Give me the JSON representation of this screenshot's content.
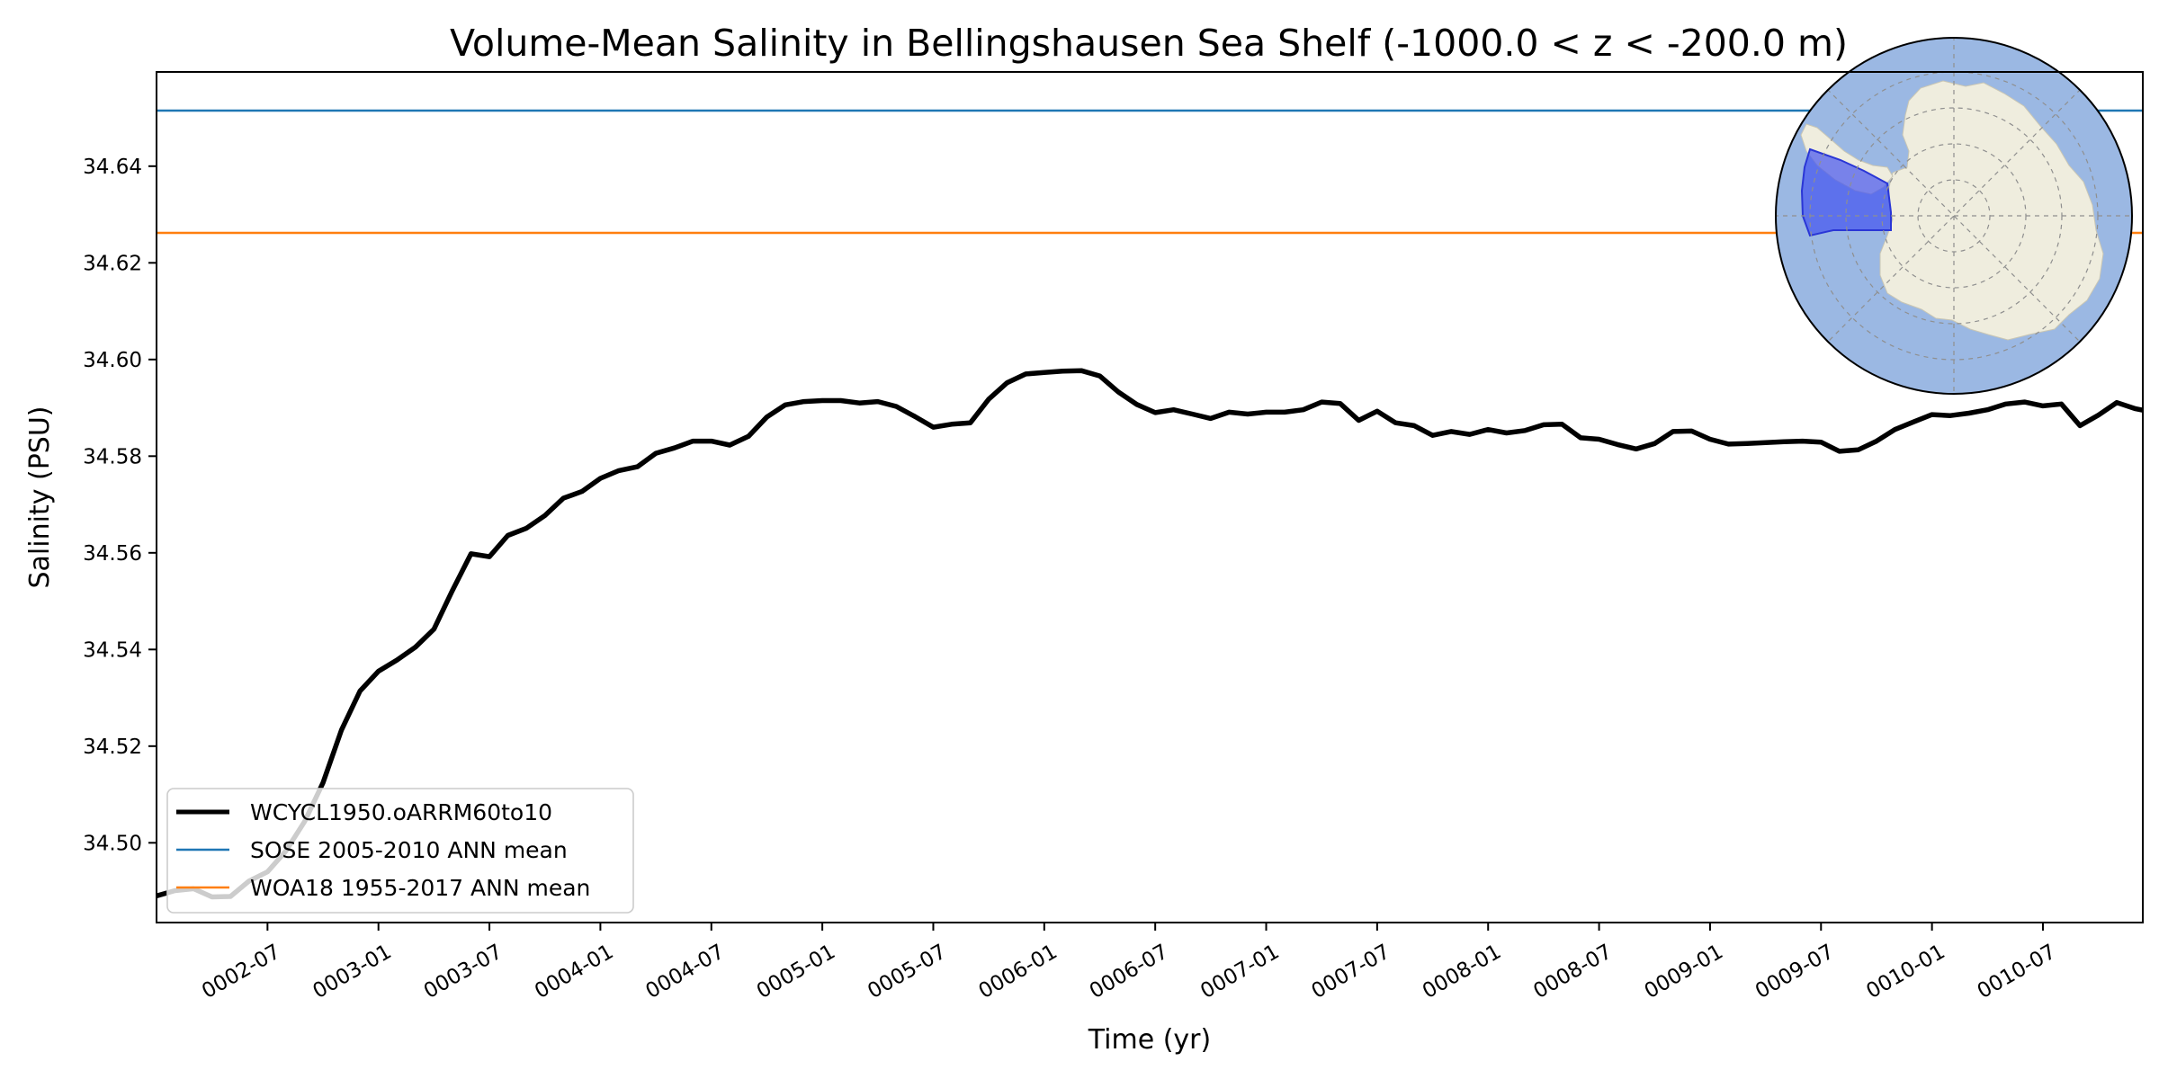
{
  "chart_data": {
    "type": "line",
    "title": "Volume-Mean Salinity in Bellingshausen Sea Shelf (-1000.0 < z < -200.0 m)",
    "xlabel": "Time (yr)",
    "ylabel": "Salinity (PSU)",
    "xlim": [
      2.0,
      10.95
    ],
    "ylim": [
      34.4835,
      34.6595
    ],
    "x_ticks": [
      {
        "x": 2.5,
        "label": "0002-07"
      },
      {
        "x": 3.0,
        "label": "0003-01"
      },
      {
        "x": 3.5,
        "label": "0003-07"
      },
      {
        "x": 4.0,
        "label": "0004-01"
      },
      {
        "x": 4.5,
        "label": "0004-07"
      },
      {
        "x": 5.0,
        "label": "0005-01"
      },
      {
        "x": 5.5,
        "label": "0005-07"
      },
      {
        "x": 6.0,
        "label": "0006-01"
      },
      {
        "x": 6.5,
        "label": "0006-07"
      },
      {
        "x": 7.0,
        "label": "0007-01"
      },
      {
        "x": 7.5,
        "label": "0007-07"
      },
      {
        "x": 8.0,
        "label": "0008-01"
      },
      {
        "x": 8.5,
        "label": "0008-07"
      },
      {
        "x": 9.0,
        "label": "0009-01"
      },
      {
        "x": 9.5,
        "label": "0009-07"
      },
      {
        "x": 10.0,
        "label": "0010-01"
      },
      {
        "x": 10.5,
        "label": "0010-07"
      }
    ],
    "y_ticks": [
      34.5,
      34.52,
      34.54,
      34.56,
      34.58,
      34.6,
      34.62,
      34.64
    ],
    "y_tick_labels": [
      "34.50",
      "34.52",
      "34.54",
      "34.56",
      "34.58",
      "34.60",
      "34.62",
      "34.64"
    ],
    "series": [
      {
        "name": "WCYCL1950.oARRM60to10",
        "color": "#000000",
        "x": [
          2.0,
          2.083,
          2.167,
          2.25,
          2.333,
          2.417,
          2.5,
          2.583,
          2.667,
          2.75,
          2.833,
          2.917,
          3.0,
          3.083,
          3.167,
          3.25,
          3.333,
          3.417,
          3.5,
          3.583,
          3.667,
          3.75,
          3.833,
          3.917,
          4.0,
          4.083,
          4.167,
          4.25,
          4.333,
          4.417,
          4.5,
          4.583,
          4.667,
          4.75,
          4.833,
          4.917,
          5.0,
          5.083,
          5.167,
          5.25,
          5.333,
          5.417,
          5.5,
          5.583,
          5.667,
          5.75,
          5.833,
          5.917,
          6.0,
          6.083,
          6.167,
          6.25,
          6.333,
          6.417,
          6.5,
          6.583,
          6.667,
          6.75,
          6.833,
          6.917,
          7.0,
          7.083,
          7.167,
          7.25,
          7.333,
          7.417,
          7.5,
          7.583,
          7.667,
          7.75,
          7.833,
          7.917,
          8.0,
          8.083,
          8.167,
          8.25,
          8.333,
          8.417,
          8.5,
          8.583,
          8.667,
          8.75,
          8.833,
          8.917,
          9.0,
          9.083,
          9.167,
          9.25,
          9.333,
          9.417,
          9.5,
          9.583,
          9.667,
          9.75,
          9.833,
          9.917,
          10.0,
          10.083,
          10.167,
          10.25,
          10.333,
          10.417,
          10.5,
          10.583,
          10.667,
          10.75,
          10.833,
          10.917,
          10.95
        ],
        "values": [
          34.489,
          34.4901,
          34.4905,
          34.4888,
          34.4889,
          34.4921,
          34.494,
          34.4983,
          34.5044,
          34.5124,
          34.5233,
          34.5314,
          34.5355,
          34.5378,
          34.5405,
          34.5442,
          34.5522,
          34.5598,
          34.5592,
          34.5636,
          34.5651,
          34.5677,
          34.5713,
          34.5727,
          34.5754,
          34.577,
          34.5778,
          34.5806,
          34.5817,
          34.5831,
          34.5831,
          34.5823,
          34.5841,
          34.5881,
          34.5906,
          34.5913,
          34.5915,
          34.5915,
          34.591,
          34.5913,
          34.5903,
          34.5882,
          34.586,
          34.5866,
          34.5869,
          34.5918,
          34.5952,
          34.597,
          34.5973,
          34.5976,
          34.5977,
          34.5966,
          34.5933,
          34.5907,
          34.589,
          34.5896,
          34.5887,
          34.5878,
          34.5891,
          34.5887,
          34.5891,
          34.5891,
          34.5896,
          34.5912,
          34.5909,
          34.5874,
          34.5893,
          34.5869,
          34.5863,
          34.5843,
          34.5851,
          34.5845,
          34.5855,
          34.5848,
          34.5853,
          34.5865,
          34.5866,
          34.5838,
          34.5835,
          34.5824,
          34.5815,
          34.5826,
          34.5851,
          34.5852,
          34.5835,
          34.5825,
          34.5826,
          34.5828,
          34.583,
          34.5831,
          34.5829,
          34.581,
          34.5813,
          34.5831,
          34.5855,
          34.5871,
          34.5886,
          34.5884,
          34.5889,
          34.5896,
          34.5908,
          34.5912,
          34.5904,
          34.5908,
          34.5863,
          34.5885,
          34.5911,
          34.5898,
          34.5895
        ]
      },
      {
        "name": "SOSE 2005-2010 ANN mean",
        "color": "#1f77b4",
        "value": 34.6515
      },
      {
        "name": "WOA18 1955-2017 ANN mean",
        "color": "#ff7f0e",
        "value": 34.6262
      }
    ],
    "legend": {
      "location": "lower-left",
      "entries": [
        "WCYCL1950.oARRM60to10",
        "SOSE 2005-2010 ANN mean",
        "WOA18 1955-2017 ANN mean"
      ]
    },
    "inset_map": {
      "description": "south-polar-stereographic-map",
      "ocean_color": "#9bb8e3",
      "land_color": "#efedde",
      "region_color": "#3f4ff0"
    },
    "grid": false
  }
}
